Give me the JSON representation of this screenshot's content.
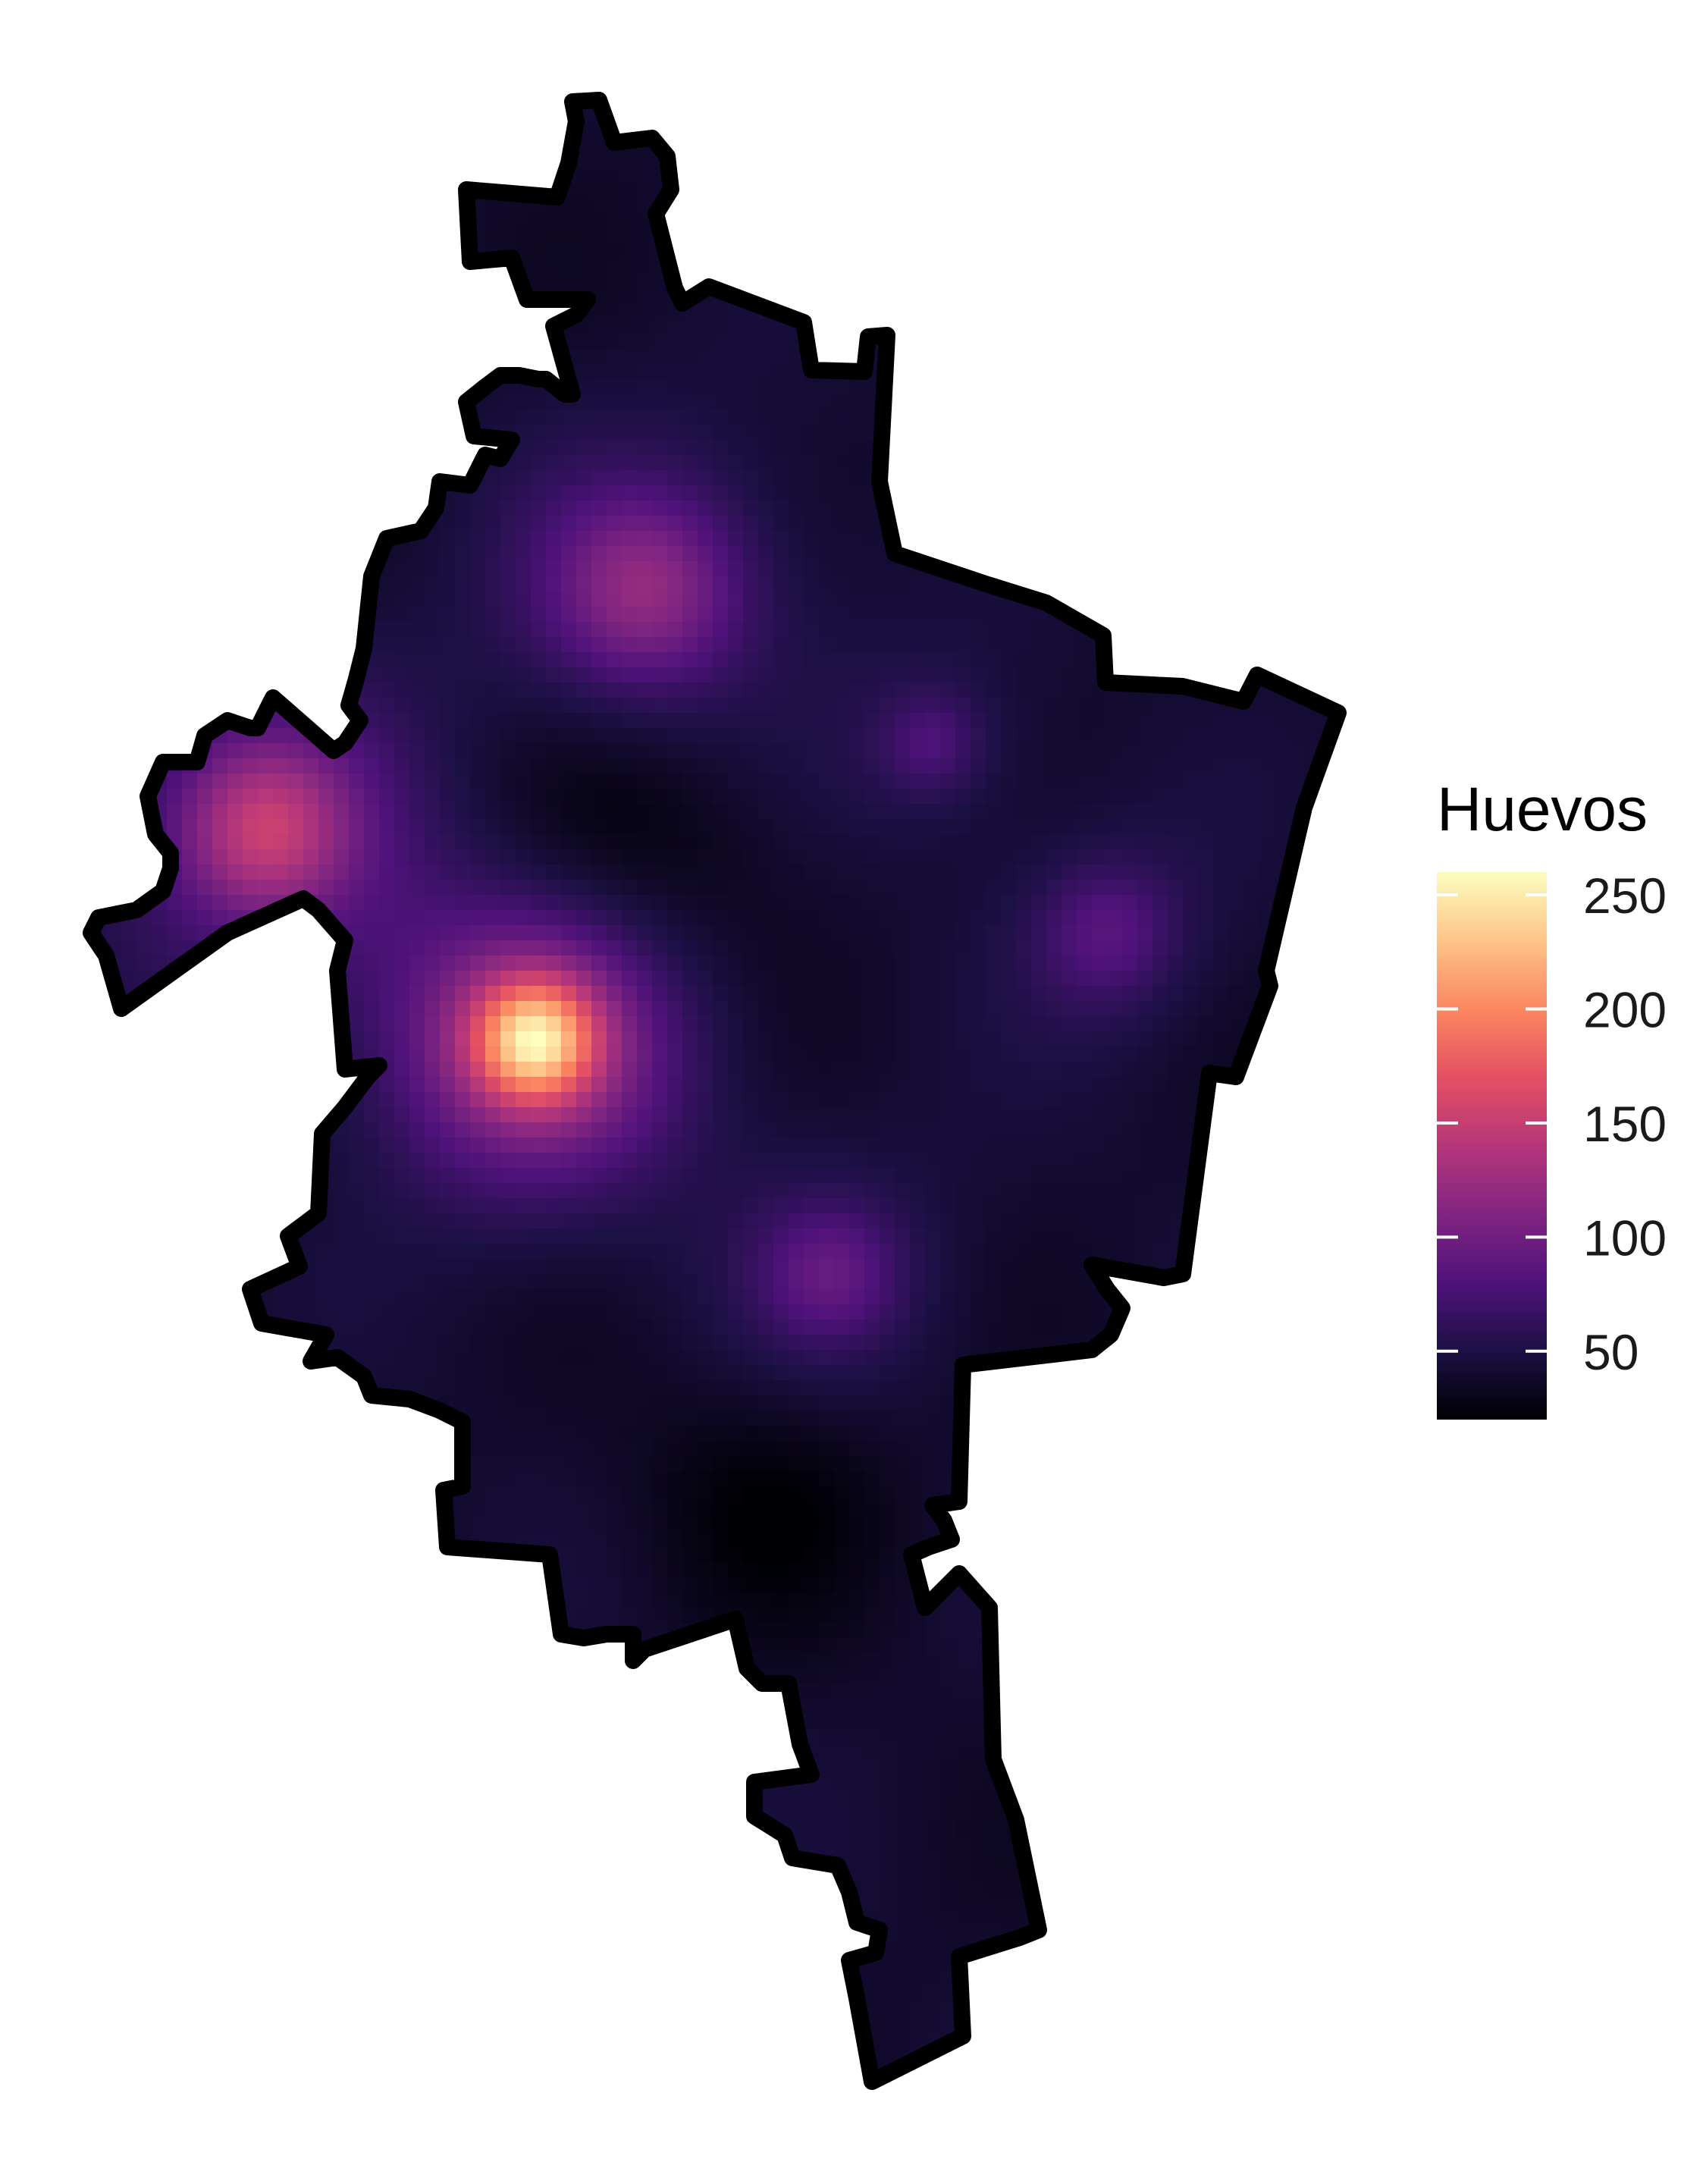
{
  "legend": {
    "title": "Huevos",
    "ticks": [
      {
        "value": 50,
        "label": "50"
      },
      {
        "value": 100,
        "label": "100"
      },
      {
        "value": 150,
        "label": "150"
      },
      {
        "value": 200,
        "label": "200"
      },
      {
        "value": 250,
        "label": "250"
      }
    ],
    "range": [
      20,
      260
    ],
    "palette": "magma",
    "colors": [
      "#000004",
      "#1c1044",
      "#4f127b",
      "#812581",
      "#b5367a",
      "#e55063",
      "#fb8761",
      "#fec387",
      "#fcfdbf"
    ]
  },
  "chart_data": {
    "type": "heatmap",
    "title": "",
    "legend_title": "Huevos",
    "value_range": [
      20,
      260
    ],
    "legend_position": "right",
    "grid": false,
    "background_level": 40,
    "hotspots": [
      {
        "name": "central-west peak",
        "value": 260
      },
      {
        "name": "west arm",
        "value": 150
      },
      {
        "name": "north center",
        "value": 120
      },
      {
        "name": "south center",
        "value": 90
      },
      {
        "name": "east",
        "value": 80
      },
      {
        "name": "north east",
        "value": 85
      }
    ],
    "low_zones": [
      {
        "name": "center",
        "value": 20
      },
      {
        "name": "south",
        "value": 22
      }
    ]
  }
}
